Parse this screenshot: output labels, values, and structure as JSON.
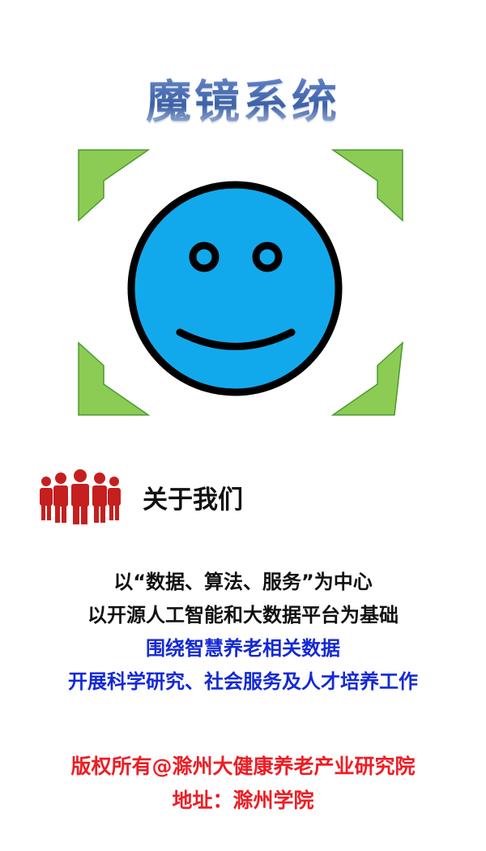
{
  "header": {
    "title": "魔镜系统"
  },
  "illustration": {
    "face_color": "#12a9ec",
    "frame_color": "#8ccc55",
    "icons": [
      "smiley-face-icon",
      "frame-corner-icon"
    ]
  },
  "about": {
    "icon": "people-group-icon",
    "icon_color": "#c51f1f",
    "heading": "关于我们"
  },
  "mission": {
    "lines": [
      "以“数据、算法、服务”为中心",
      "以开源人工智能和大数据平台为基础",
      "围绕智慧养老相关数据",
      "开展科学研究、社会服务及人才培养工作"
    ]
  },
  "footer": {
    "copyright": "版权所有@滁州大健康养老产业研究院",
    "address": "地址：滁州学院"
  },
  "colors": {
    "title": "#4f73b8",
    "dark_text": "#111111",
    "blue_text": "#1429d6",
    "red_text": "#ee1d24"
  }
}
